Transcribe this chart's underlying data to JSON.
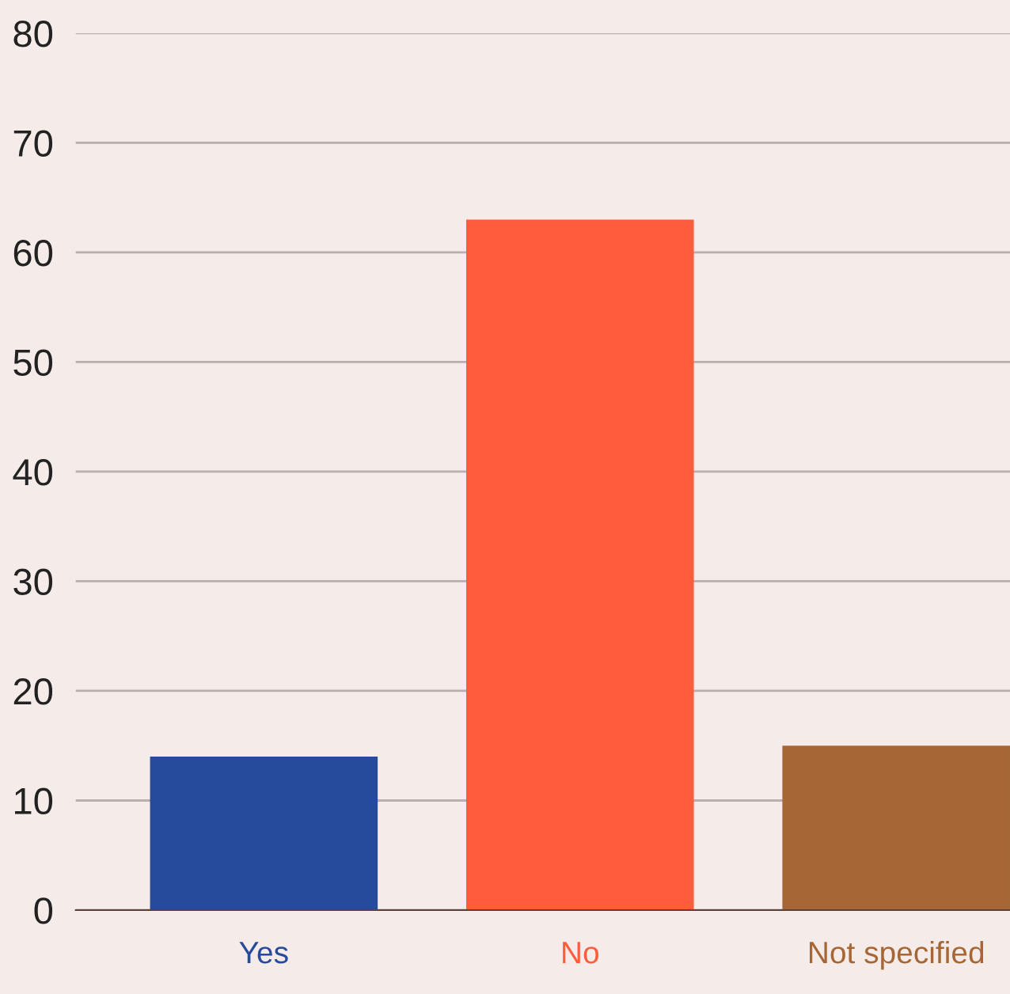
{
  "chart_data": {
    "type": "bar",
    "categories": [
      "Yes",
      "No",
      "Not specified"
    ],
    "values": [
      14,
      63,
      15
    ],
    "colors": [
      "#264a9c",
      "#ff5c3e",
      "#a66635"
    ],
    "ylim": [
      0,
      80
    ],
    "yticks": [
      0,
      10,
      20,
      30,
      40,
      50,
      60,
      70,
      80
    ],
    "grid": "y",
    "legend": false
  }
}
